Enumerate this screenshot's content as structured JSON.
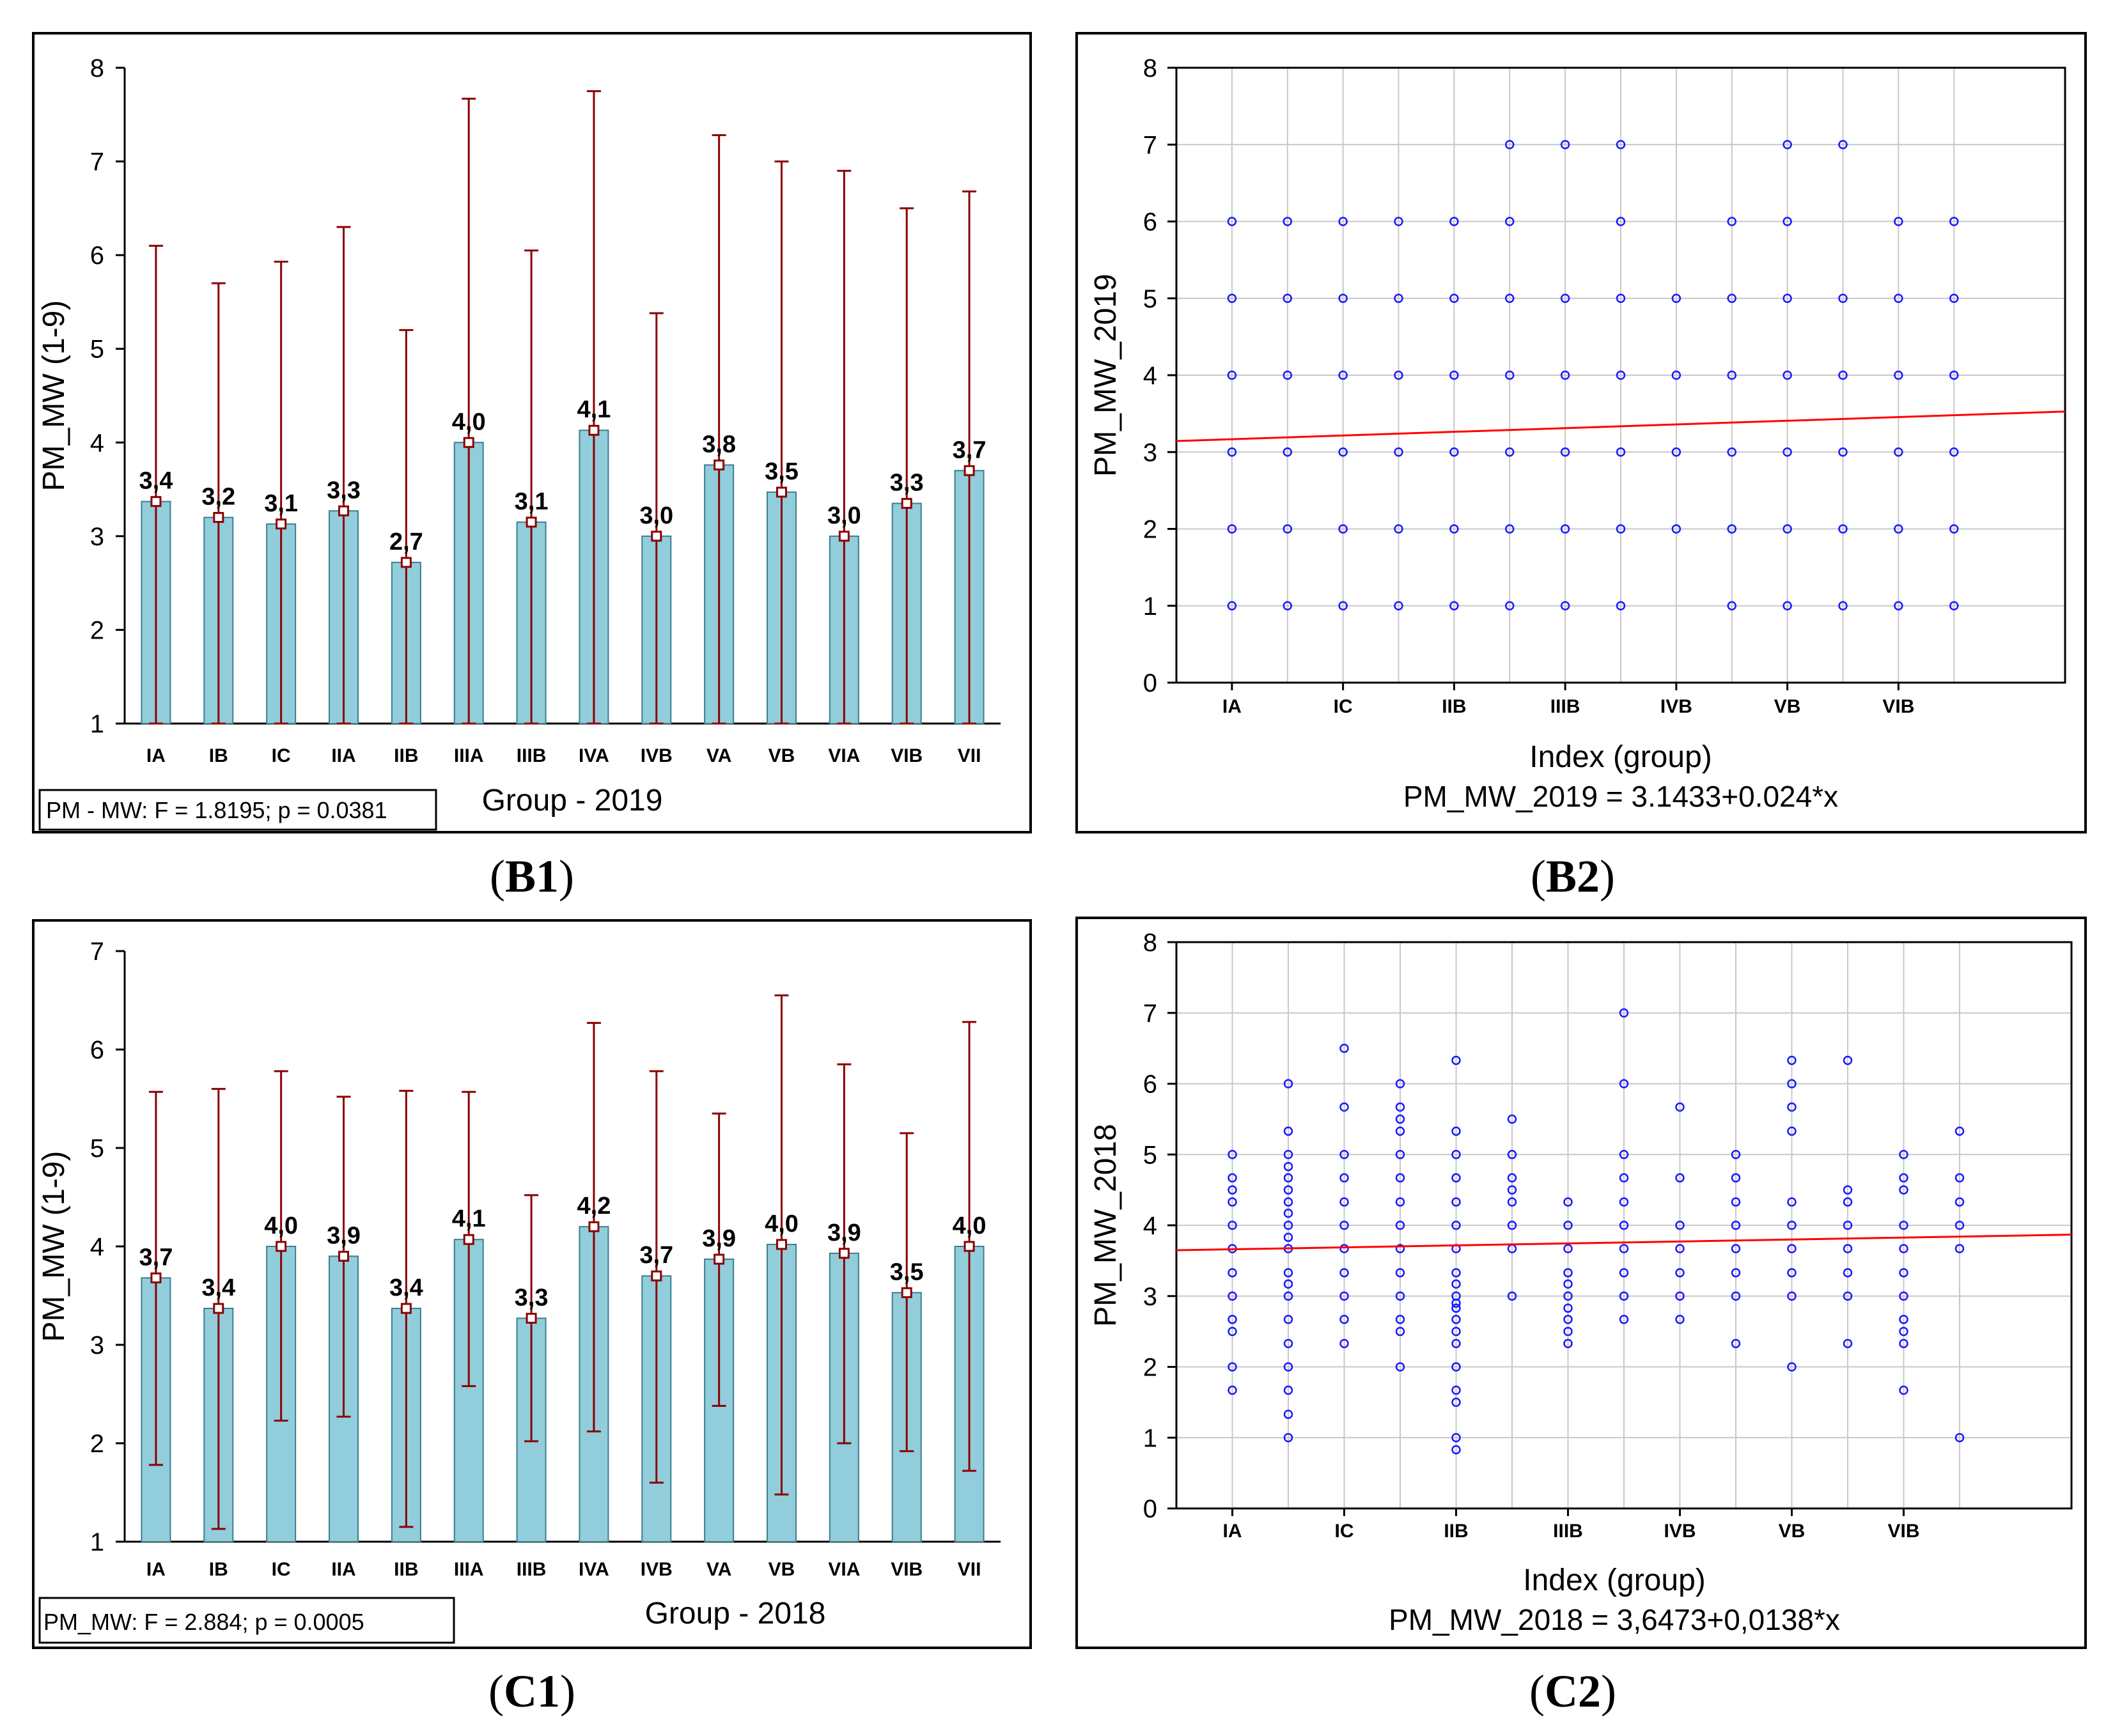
{
  "panels": [
    {
      "id": "B1",
      "caption": "B1",
      "chart_data": {
        "type": "bar",
        "title": "",
        "xlabel": "Group - 2019",
        "ylabel": "PM_MW (1-9)",
        "ylim": [
          1,
          8
        ],
        "yticks": [
          1,
          2,
          3,
          4,
          5,
          6,
          7,
          8
        ],
        "categories": [
          "IA",
          "IB",
          "IC",
          "IIA",
          "IIB",
          "IIIA",
          "IIIB",
          "IVA",
          "IVB",
          "VA",
          "VB",
          "VIA",
          "VIB",
          "VII"
        ],
        "values": [
          3.37,
          3.2,
          3.13,
          3.27,
          2.72,
          4.0,
          3.15,
          4.13,
          3.0,
          3.76,
          3.47,
          3.0,
          3.35,
          3.7
        ],
        "value_labels": [
          "3,4",
          "3,2",
          "3,1",
          "3,3",
          "2,7",
          "4,0",
          "3,1",
          "4,1",
          "3,0",
          "3,8",
          "3,5",
          "3,0",
          "3,3",
          "3,7"
        ],
        "error_upper": [
          6.1,
          5.7,
          5.93,
          6.3,
          5.2,
          7.67,
          6.05,
          7.75,
          5.38,
          7.28,
          7.0,
          6.9,
          6.5,
          6.68
        ],
        "error_lower": [
          1.0,
          1.0,
          1.0,
          1.0,
          1.0,
          1.0,
          1.0,
          1.0,
          1.0,
          1.0,
          1.0,
          1.0,
          1.0,
          1.0
        ],
        "stats_box": "PM - MW:   F = 1.8195; p = 0.0381"
      }
    },
    {
      "id": "B2",
      "caption": "B2",
      "chart_data": {
        "type": "scatter",
        "title": "",
        "xlabel": "Index (group)",
        "ylabel": "PM_MW_2019",
        "equation": "PM_MW_2019 = 3.1433+0.024*x",
        "ylim": [
          0,
          8
        ],
        "yticks": [
          0,
          1,
          2,
          3,
          4,
          5,
          6,
          7,
          8
        ],
        "xlim": [
          0,
          16
        ],
        "xtick_labels": [
          "IA",
          "IC",
          "IIB",
          "IIIB",
          "IVB",
          "VB",
          "VIB"
        ],
        "xtick_positions": [
          1,
          3,
          5,
          7,
          9,
          11,
          13
        ],
        "regression": {
          "intercept": 3.1433,
          "slope": 0.024
        },
        "x_groups": [
          1,
          2,
          3,
          4,
          5,
          6,
          7,
          8,
          9,
          10,
          11,
          12,
          13,
          14
        ],
        "points_by_group": [
          [
            1,
            2,
            3,
            4,
            5,
            6
          ],
          [
            1,
            2,
            3,
            4,
            5,
            6
          ],
          [
            1,
            2,
            3,
            4,
            5,
            6
          ],
          [
            1,
            2,
            3,
            4,
            5,
            6
          ],
          [
            1,
            2,
            3,
            4,
            5,
            6
          ],
          [
            1,
            2,
            3,
            4,
            5,
            6,
            7
          ],
          [
            1,
            2,
            3,
            4,
            5,
            7
          ],
          [
            1,
            2,
            3,
            4,
            5,
            6,
            7
          ],
          [
            2,
            3,
            4,
            5
          ],
          [
            1,
            2,
            3,
            4,
            5,
            6
          ],
          [
            1,
            2,
            3,
            4,
            5,
            6,
            7
          ],
          [
            1,
            2,
            3,
            4,
            5,
            7
          ],
          [
            1,
            2,
            3,
            4,
            5,
            6
          ],
          [
            1,
            2,
            3,
            4,
            5,
            6
          ]
        ]
      }
    },
    {
      "id": "C1",
      "caption": "C1",
      "chart_data": {
        "type": "bar",
        "title": "",
        "xlabel": "Group - 2018",
        "ylabel": "PM_MW (1-9)",
        "ylim": [
          1,
          7
        ],
        "yticks": [
          1,
          2,
          3,
          4,
          5,
          6,
          7
        ],
        "categories": [
          "IA",
          "IB",
          "IC",
          "IIA",
          "IIB",
          "IIIA",
          "IIIB",
          "IVA",
          "IVB",
          "VA",
          "VB",
          "VIA",
          "VIB",
          "VII"
        ],
        "values": [
          3.68,
          3.37,
          4.0,
          3.9,
          3.37,
          4.07,
          3.27,
          4.2,
          3.7,
          3.87,
          4.02,
          3.93,
          3.53,
          4.0
        ],
        "value_labels": [
          "3,7",
          "3,4",
          "4,0",
          "3,9",
          "3,4",
          "4,1",
          "3,3",
          "4,2",
          "3,7",
          "3,9",
          "4,0",
          "3,9",
          "3,5",
          "4,0"
        ],
        "error_upper": [
          5.57,
          5.6,
          5.78,
          5.52,
          5.58,
          5.57,
          4.52,
          6.27,
          5.78,
          5.35,
          6.55,
          5.85,
          5.15,
          6.28
        ],
        "error_lower": [
          1.78,
          1.13,
          2.23,
          2.27,
          1.15,
          2.58,
          2.02,
          2.12,
          1.6,
          2.38,
          1.48,
          2.0,
          1.92,
          1.72
        ],
        "stats_box": "PM_MW:   F = 2.884; p = 0.0005"
      }
    },
    {
      "id": "C2",
      "caption": "C2",
      "chart_data": {
        "type": "scatter",
        "title": "",
        "xlabel": "Index (group)",
        "ylabel": "PM_MW_2018",
        "equation": "PM_MW_2018 = 3,6473+0,0138*x",
        "ylim": [
          0,
          8
        ],
        "yticks": [
          0,
          1,
          2,
          3,
          4,
          5,
          6,
          7,
          8
        ],
        "xlim": [
          0,
          16
        ],
        "xtick_labels": [
          "IA",
          "IC",
          "IIB",
          "IIIB",
          "IVB",
          "VB",
          "VIB"
        ],
        "xtick_positions": [
          1,
          3,
          5,
          7,
          9,
          11,
          13
        ],
        "regression": {
          "intercept": 3.6473,
          "slope": 0.0138
        },
        "x_groups": [
          1,
          2,
          3,
          4,
          5,
          6,
          7,
          8,
          9,
          10,
          11,
          12,
          13,
          14
        ],
        "points_by_group": [
          [
            1.67,
            2.0,
            2.5,
            2.67,
            3.0,
            3.33,
            3.67,
            4.0,
            4.33,
            4.5,
            4.67,
            5.0
          ],
          [
            1.0,
            1.33,
            1.67,
            2.0,
            2.33,
            2.67,
            3.0,
            3.17,
            3.33,
            3.67,
            3.83,
            4.0,
            4.17,
            4.33,
            4.5,
            4.67,
            4.83,
            5.0,
            5.33,
            6.0
          ],
          [
            2.33,
            2.67,
            3.0,
            3.33,
            3.67,
            4.0,
            4.33,
            4.67,
            5.0,
            5.67,
            6.5
          ],
          [
            2.0,
            2.5,
            2.67,
            3.0,
            3.33,
            3.67,
            4.0,
            4.33,
            4.67,
            5.0,
            5.33,
            5.5,
            5.67,
            6.0
          ],
          [
            0.83,
            1.0,
            1.5,
            1.67,
            2.0,
            2.33,
            2.5,
            2.67,
            2.83,
            2.9,
            3.0,
            3.17,
            3.33,
            3.67,
            4.0,
            4.33,
            4.67,
            5.0,
            5.33,
            6.33
          ],
          [
            3.0,
            3.67,
            4.0,
            4.33,
            4.5,
            4.67,
            5.0,
            5.5
          ],
          [
            2.33,
            2.5,
            2.67,
            2.83,
            3.0,
            3.17,
            3.33,
            3.67,
            4.0,
            4.33
          ],
          [
            2.67,
            3.0,
            3.33,
            3.67,
            4.0,
            4.33,
            4.67,
            5.0,
            6.0,
            7.0
          ],
          [
            2.67,
            3.0,
            3.33,
            3.67,
            4.0,
            4.67,
            5.67
          ],
          [
            2.33,
            3.0,
            3.33,
            3.67,
            4.0,
            4.33,
            4.67,
            5.0
          ],
          [
            2.0,
            3.0,
            3.33,
            3.67,
            4.0,
            4.33,
            5.33,
            5.67,
            6.0,
            6.33
          ],
          [
            2.33,
            3.0,
            3.33,
            3.67,
            4.0,
            4.33,
            4.5,
            6.33
          ],
          [
            1.67,
            2.33,
            2.5,
            2.67,
            3.0,
            3.33,
            3.67,
            4.0,
            4.5,
            4.67,
            5.0
          ],
          [
            1.0,
            3.67,
            4.0,
            4.33,
            4.67,
            5.33
          ]
        ]
      }
    }
  ],
  "colors": {
    "bar_fill": "#92cddc",
    "bar_stroke": "#3b7f8e",
    "error_bar": "#8b0000",
    "scatter_point": "#1a1aff",
    "regression_line": "#ff0000",
    "grid": "#c8c8c8",
    "frame": "#000000"
  }
}
